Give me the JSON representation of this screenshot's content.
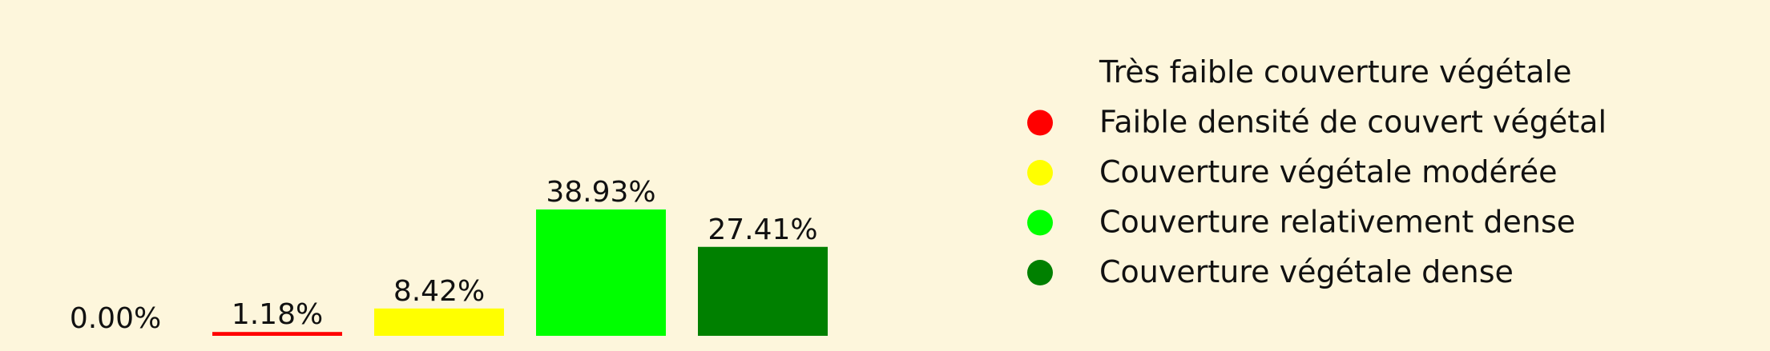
{
  "chart_data": {
    "type": "bar",
    "categories": [
      "Très faible couverture végétale",
      "Faible densité de couvert végétal",
      "Couverture végétale modérée",
      "Couverture relativement dense",
      "Couverture végétale dense"
    ],
    "values": [
      0.0,
      1.18,
      8.42,
      38.93,
      27.41
    ],
    "labels": [
      "0.00%",
      "1.18%",
      "8.42%",
      "38.93%",
      "27.41%"
    ],
    "colors": [
      "#fdf6dc",
      "#ff0000",
      "#ffff00",
      "#00ff00",
      "#008000"
    ],
    "ylim": [
      0,
      38.93
    ],
    "legend_position": "right",
    "grid": false,
    "xlabel": "",
    "ylabel": ""
  },
  "background_color": "#fdf6dc"
}
